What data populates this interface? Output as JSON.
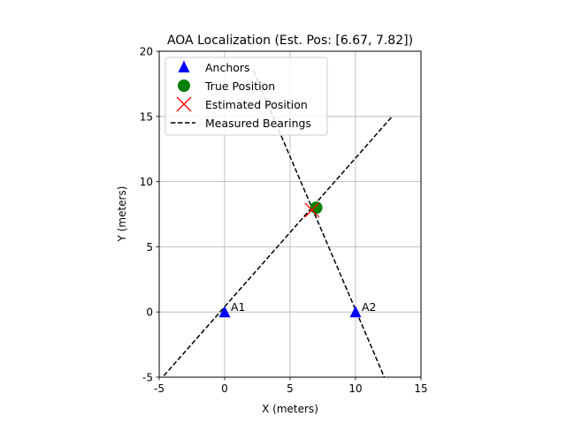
{
  "chart_data": {
    "type": "scatter",
    "title": "AOA Localization (Est. Pos: [6.67, 7.82])",
    "xlabel": "X (meters)",
    "ylabel": "Y (meters)",
    "xlim": [
      -5,
      15
    ],
    "ylim": [
      -5,
      20
    ],
    "xticks": [
      -5,
      0,
      5,
      10,
      15
    ],
    "yticks": [
      -5,
      0,
      5,
      10,
      15,
      20
    ],
    "grid": true,
    "legend_position": "top-left",
    "anchors": {
      "name": "Anchors",
      "color": "#0000ff",
      "marker": "triangle",
      "points": [
        {
          "label": "A1",
          "x": 0,
          "y": 0
        },
        {
          "label": "A2",
          "x": 10,
          "y": 0
        }
      ]
    },
    "true_position": {
      "name": "True Position",
      "color": "#008000",
      "marker": "circle",
      "x": 7,
      "y": 8
    },
    "estimated_position": {
      "name": "Estimated Position",
      "color": "#ff0000",
      "marker": "x",
      "x": 6.67,
      "y": 7.82
    },
    "bearings": {
      "name": "Measured Bearings",
      "color": "#000000",
      "style": "dashed",
      "lines": [
        {
          "x": [
            -5,
            12.8
          ],
          "y": [
            -5.3,
            15
          ]
        },
        {
          "x": [
            2.2,
            12.2
          ],
          "y": [
            18.5,
            -5
          ]
        }
      ]
    }
  }
}
